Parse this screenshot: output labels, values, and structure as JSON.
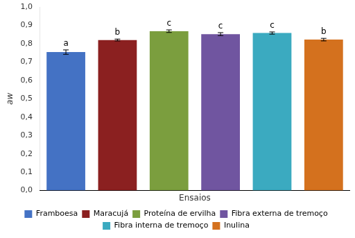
{
  "chart_data": {
    "type": "bar",
    "categories": [
      "Framboesa",
      "Maracujá",
      "Proteína de ervilha",
      "Fibra externa de tremoço",
      "Fibra interna de tremoço",
      "Inulina"
    ],
    "values": [
      0.754,
      0.82,
      0.868,
      0.852,
      0.858,
      0.822
    ],
    "errors": [
      0.012,
      0.005,
      0.007,
      0.008,
      0.006,
      0.007
    ],
    "colors": [
      "#4472C4",
      "#8B2020",
      "#7B9E3E",
      "#7055A0",
      "#3BAAC0",
      "#D4711E"
    ],
    "annotations": [
      {
        "category": "Framboesa",
        "text": "a"
      },
      {
        "category": "Maracujá",
        "text": "b"
      },
      {
        "category": "Proteína de ervilha",
        "text": "c"
      },
      {
        "category": "Fibra externa de tremoço",
        "text": "c"
      },
      {
        "category": "Fibra interna de tremoço",
        "text": "c"
      },
      {
        "category": "Inulina",
        "text": "b"
      }
    ],
    "xlabel": "Ensaios",
    "ylabel": "aw",
    "ylim": [
      0.0,
      1.0
    ],
    "yticks": [
      {
        "value": 0.0,
        "label": "0,0"
      },
      {
        "value": 0.1,
        "label": "0,1"
      },
      {
        "value": 0.2,
        "label": "0,2"
      },
      {
        "value": 0.3,
        "label": "0,3"
      },
      {
        "value": 0.4,
        "label": "0,4"
      },
      {
        "value": 0.5,
        "label": "0,5"
      },
      {
        "value": 0.6,
        "label": "0,6"
      },
      {
        "value": 0.7,
        "label": "0,7"
      },
      {
        "value": 0.8,
        "label": "0,8"
      },
      {
        "value": 0.9,
        "label": "0,9"
      },
      {
        "value": 1.0,
        "label": "1,0"
      }
    ],
    "grid": false,
    "legend": "bottom",
    "tick_labels": "y"
  }
}
